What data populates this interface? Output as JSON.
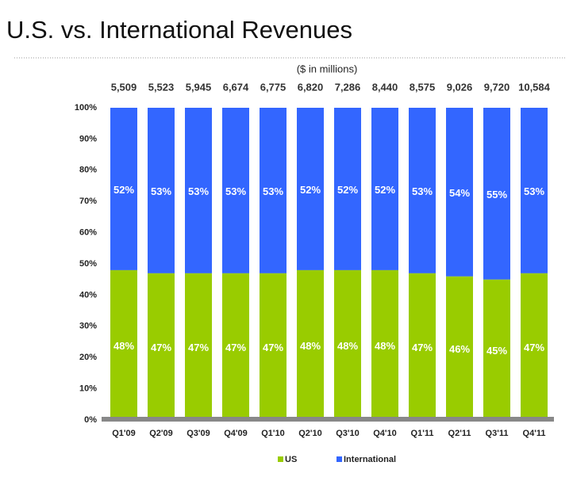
{
  "chart_data": {
    "type": "stacked_bar",
    "title": "U.S. vs. International Revenues",
    "subtitle": "($ in millions)",
    "categories": [
      "Q1'09",
      "Q2'09",
      "Q3'09",
      "Q4'09",
      "Q1'10",
      "Q2'10",
      "Q3'10",
      "Q4'10",
      "Q1'11",
      "Q2'11",
      "Q3'11",
      "Q4'11"
    ],
    "series": [
      {
        "name": "US",
        "color": "#99cc00",
        "values": [
          48,
          47,
          47,
          47,
          47,
          48,
          48,
          48,
          47,
          46,
          45,
          47
        ],
        "value_labels": [
          "48%",
          "47%",
          "47%",
          "47%",
          "47%",
          "48%",
          "48%",
          "48%",
          "47%",
          "46%",
          "45%",
          "47%"
        ]
      },
      {
        "name": "International",
        "color": "#3366ff",
        "values": [
          52,
          53,
          53,
          53,
          53,
          52,
          52,
          52,
          53,
          54,
          55,
          53
        ],
        "value_labels": [
          "52%",
          "53%",
          "53%",
          "53%",
          "53%",
          "52%",
          "52%",
          "52%",
          "53%",
          "54%",
          "55%",
          "53%"
        ]
      }
    ],
    "totals": {
      "values": [
        5509,
        5523,
        5945,
        6674,
        6775,
        6820,
        7286,
        8440,
        8575,
        9026,
        9720,
        10584
      ],
      "value_labels": [
        "5,509",
        "5,523",
        "5,945",
        "6,674",
        "6,775",
        "6,820",
        "7,286",
        "8,440",
        "8,575",
        "9,026",
        "9,720",
        "10,584"
      ]
    },
    "ylim": [
      0,
      100
    ],
    "yticks": [
      {
        "value": 0,
        "label": "0%"
      },
      {
        "value": 10,
        "label": "10%"
      },
      {
        "value": 20,
        "label": "20%"
      },
      {
        "value": 30,
        "label": "30%"
      },
      {
        "value": 40,
        "label": "40%"
      },
      {
        "value": 50,
        "label": "50%"
      },
      {
        "value": 60,
        "label": "60%"
      },
      {
        "value": 70,
        "label": "70%"
      },
      {
        "value": 80,
        "label": "80%"
      },
      {
        "value": 90,
        "label": "90%"
      },
      {
        "value": 100,
        "label": "100%"
      }
    ],
    "legend": "bottom"
  }
}
